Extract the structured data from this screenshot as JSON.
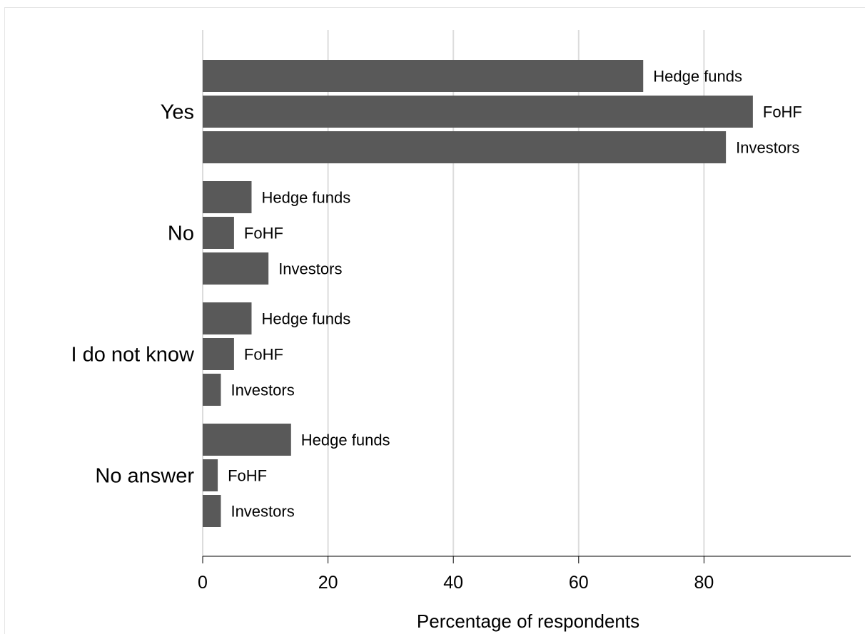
{
  "chart_data": {
    "type": "bar",
    "orientation": "horizontal",
    "categories": [
      "Yes",
      "No",
      "I do not know",
      "No answer"
    ],
    "series": [
      {
        "name": "Hedge funds",
        "values": [
          70.3,
          7.8,
          7.8,
          14.1
        ]
      },
      {
        "name": "FoHF",
        "values": [
          87.8,
          5.0,
          5.0,
          2.4
        ]
      },
      {
        "name": "Investors",
        "values": [
          83.5,
          10.5,
          2.9,
          2.9
        ]
      }
    ],
    "xlabel": "Percentage of respondents",
    "xlim": [
      0,
      103
    ],
    "xticks": [
      0,
      20,
      40,
      60,
      80
    ],
    "grid": true,
    "legend": "none"
  }
}
